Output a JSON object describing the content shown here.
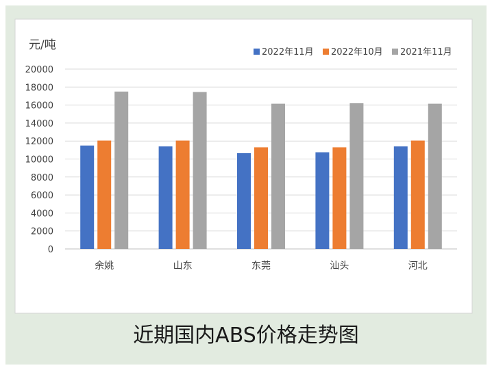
{
  "figure": {
    "caption": "近期国内ABS价格走势图"
  },
  "chart_data": {
    "type": "bar",
    "ylabel": "元/吨",
    "ylim": [
      0,
      20000
    ],
    "yticks": [
      0,
      2000,
      4000,
      6000,
      8000,
      10000,
      12000,
      14000,
      16000,
      18000,
      20000
    ],
    "grid": true,
    "legend": "top-right",
    "categories": [
      "余姚",
      "山东",
      "东莞",
      "汕头",
      "河北"
    ],
    "series": [
      {
        "name": "2022年11月",
        "color": "#4472c4",
        "values": [
          11500,
          11400,
          10650,
          10750,
          11400
        ]
      },
      {
        "name": "2022年10月",
        "color": "#ed7d31",
        "values": [
          12050,
          12050,
          11300,
          11300,
          12050
        ]
      },
      {
        "name": "2021年11月",
        "color": "#a5a5a5",
        "values": [
          17500,
          17450,
          16150,
          16200,
          16150
        ]
      }
    ]
  }
}
